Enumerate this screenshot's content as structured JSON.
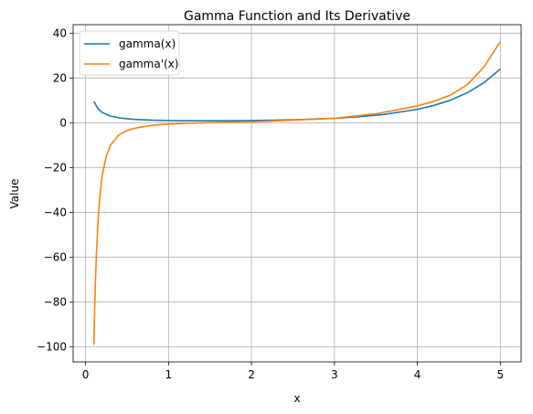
{
  "chart_data": {
    "type": "line",
    "title": "Gamma Function and Its Derivative",
    "xlabel": "x",
    "ylabel": "Value",
    "xlim": [
      -0.15,
      5.25
    ],
    "ylim": [
      -106.8,
      43.8
    ],
    "grid": true,
    "legend_position": "top-left",
    "x_ticks": [
      0,
      1,
      2,
      3,
      4,
      5
    ],
    "y_ticks": [
      -100,
      -80,
      -60,
      -40,
      -20,
      0,
      20,
      40
    ],
    "x_tick_labels": [
      "0",
      "1",
      "2",
      "3",
      "4",
      "5"
    ],
    "y_tick_labels": [
      "−100",
      "−80",
      "−60",
      "−40",
      "−20",
      "0",
      "20",
      "40"
    ],
    "series": [
      {
        "name": "gamma(x)",
        "color": "#1f77b4",
        "x": [
          0.1,
          0.15,
          0.2,
          0.3,
          0.4,
          0.5,
          0.6,
          0.8,
          1.0,
          1.2,
          1.5,
          1.8,
          2.0,
          2.3,
          2.6,
          3.0,
          3.3,
          3.6,
          4.0,
          4.2,
          4.4,
          4.6,
          4.8,
          5.0
        ],
        "values": [
          9.51,
          6.22,
          4.59,
          2.99,
          2.22,
          1.77,
          1.49,
          1.16,
          1.0,
          0.92,
          0.89,
          0.93,
          1.0,
          1.17,
          1.43,
          2.0,
          2.68,
          3.72,
          6.0,
          7.76,
          10.14,
          13.38,
          17.84,
          24.0
        ]
      },
      {
        "name": "gamma'(x)",
        "color": "#ff7f0e",
        "x": [
          0.1,
          0.11,
          0.12,
          0.13,
          0.15,
          0.17,
          0.2,
          0.25,
          0.3,
          0.4,
          0.5,
          0.6,
          0.8,
          1.0,
          1.2,
          1.5,
          2.0,
          2.5,
          3.0,
          3.5,
          4.0,
          4.2,
          4.4,
          4.6,
          4.8,
          5.0
        ],
        "values": [
          -99.2,
          -82.6,
          -69.5,
          -59.1,
          -44.0,
          -34.0,
          -23.6,
          -14.8,
          -10.1,
          -5.4,
          -3.48,
          -2.39,
          -1.15,
          -0.58,
          -0.28,
          0.03,
          0.42,
          1.17,
          2.0,
          4.0,
          7.5,
          9.6,
          12.4,
          17.0,
          24.8,
          36.2
        ]
      }
    ]
  }
}
